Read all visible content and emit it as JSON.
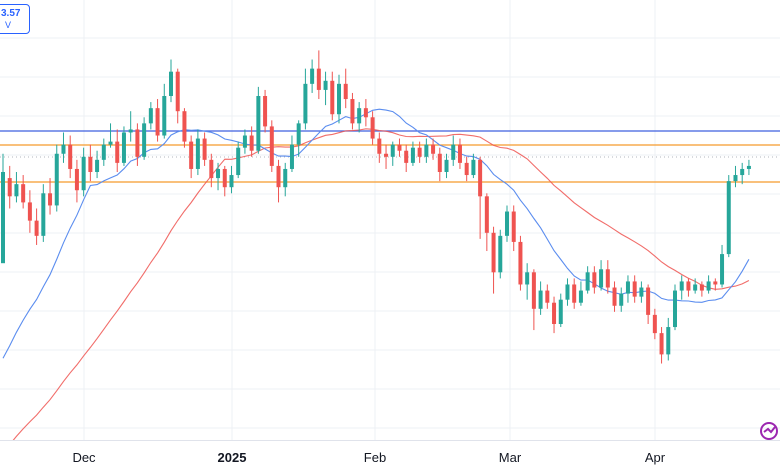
{
  "legend": {
    "value": "3.57",
    "sub": "V"
  },
  "x_axis": {
    "labels": [
      "Dec",
      "2025",
      "Feb",
      "Mar",
      "Apr"
    ]
  },
  "colors": {
    "up": "#26a69a",
    "down": "#ef5350",
    "ma_fast": "#5b8def",
    "ma_slow": "#ef5350",
    "hline_blue": "#3f5fdf",
    "hline_orange": "#f59b2c",
    "grid": "#eef0f4"
  },
  "logo_icon": "tradingview-logo-icon",
  "chart_data": {
    "type": "candlestick",
    "ohlc_note": "values read from pixel-free estimate",
    "candles": [
      [
        0.0,
        3.0,
        3.6,
        2.6
      ],
      [
        2.8,
        2.2,
        3.2,
        1.8
      ],
      [
        2.2,
        2.6,
        3.0,
        2.0
      ],
      [
        2.6,
        2.0,
        2.9,
        1.8
      ],
      [
        2.0,
        1.4,
        2.4,
        1.0
      ],
      [
        1.4,
        0.9,
        1.8,
        0.6
      ],
      [
        0.9,
        2.3,
        2.6,
        0.7
      ],
      [
        2.3,
        1.9,
        2.8,
        1.6
      ],
      [
        1.9,
        3.6,
        3.9,
        1.7
      ],
      [
        3.6,
        3.9,
        4.3,
        3.3
      ],
      [
        3.9,
        3.1,
        4.2,
        2.8
      ],
      [
        3.1,
        2.4,
        3.4,
        2.0
      ],
      [
        2.4,
        3.5,
        3.8,
        2.2
      ],
      [
        3.5,
        3.0,
        3.9,
        2.7
      ],
      [
        3.0,
        3.4,
        3.7,
        2.8
      ],
      [
        3.4,
        3.9,
        4.1,
        3.2
      ],
      [
        3.9,
        4.0,
        4.6,
        3.8
      ],
      [
        4.0,
        3.3,
        4.4,
        3.0
      ],
      [
        3.3,
        4.3,
        4.5,
        3.2
      ],
      [
        4.3,
        4.4,
        5.0,
        4.0
      ],
      [
        4.4,
        3.5,
        4.6,
        3.2
      ],
      [
        3.5,
        4.6,
        4.8,
        3.4
      ],
      [
        4.6,
        5.1,
        5.3,
        4.4
      ],
      [
        5.1,
        4.2,
        5.4,
        4.0
      ],
      [
        4.2,
        5.5,
        5.9,
        4.1
      ],
      [
        5.5,
        6.3,
        6.7,
        5.3
      ],
      [
        6.3,
        5.0,
        6.4,
        4.6
      ],
      [
        5.0,
        4.0,
        5.1,
        3.8
      ],
      [
        4.0,
        3.1,
        4.2,
        2.8
      ],
      [
        3.1,
        4.1,
        4.4,
        2.9
      ],
      [
        4.1,
        3.4,
        4.3,
        3.2
      ],
      [
        3.4,
        2.8,
        3.6,
        2.5
      ],
      [
        2.8,
        3.1,
        3.3,
        2.4
      ],
      [
        3.1,
        2.5,
        3.2,
        2.2
      ],
      [
        2.5,
        2.9,
        3.2,
        2.3
      ],
      [
        2.9,
        3.8,
        4.0,
        2.8
      ],
      [
        3.8,
        4.2,
        4.4,
        3.6
      ],
      [
        4.2,
        3.7,
        4.5,
        3.5
      ],
      [
        3.7,
        5.5,
        5.8,
        3.6
      ],
      [
        5.5,
        4.5,
        5.7,
        4.3
      ],
      [
        4.5,
        3.2,
        4.7,
        3.0
      ],
      [
        3.2,
        2.5,
        3.4,
        2.0
      ],
      [
        2.5,
        3.1,
        3.3,
        2.2
      ],
      [
        3.1,
        3.9,
        4.2,
        3.0
      ],
      [
        3.9,
        4.6,
        4.7,
        3.5
      ],
      [
        4.6,
        5.9,
        6.4,
        4.4
      ],
      [
        5.9,
        6.4,
        6.7,
        5.6
      ],
      [
        6.4,
        5.7,
        7.0,
        5.4
      ],
      [
        5.7,
        6.0,
        6.3,
        5.2
      ],
      [
        6.0,
        4.9,
        6.3,
        4.7
      ],
      [
        4.9,
        5.9,
        6.2,
        4.6
      ],
      [
        5.9,
        5.4,
        6.4,
        5.1
      ],
      [
        5.4,
        4.6,
        5.6,
        4.4
      ],
      [
        4.6,
        5.1,
        5.3,
        4.3
      ],
      [
        5.1,
        4.8,
        5.4,
        4.5
      ],
      [
        4.8,
        4.1,
        5.0,
        3.9
      ],
      [
        4.1,
        3.6,
        4.3,
        3.3
      ],
      [
        3.6,
        3.5,
        3.9,
        3.1
      ],
      [
        3.5,
        3.9,
        4.0,
        3.2
      ],
      [
        3.9,
        3.7,
        4.1,
        3.5
      ],
      [
        3.7,
        3.3,
        3.9,
        3.0
      ],
      [
        3.3,
        3.8,
        4.0,
        3.2
      ],
      [
        3.8,
        3.5,
        4.0,
        3.3
      ],
      [
        3.5,
        3.9,
        4.1,
        3.3
      ],
      [
        3.9,
        3.6,
        4.1,
        3.4
      ],
      [
        3.6,
        3.0,
        3.8,
        2.7
      ],
      [
        3.0,
        3.4,
        3.6,
        2.8
      ],
      [
        3.4,
        3.9,
        4.2,
        3.2
      ],
      [
        3.9,
        3.3,
        4.1,
        3.1
      ],
      [
        3.3,
        2.9,
        3.5,
        2.7
      ],
      [
        2.9,
        3.4,
        3.6,
        2.8
      ],
      [
        3.4,
        2.2,
        3.5,
        0.8
      ],
      [
        2.2,
        1.0,
        2.3,
        0.4
      ],
      [
        1.0,
        -0.3,
        1.2,
        -1.0
      ],
      [
        -0.3,
        0.9,
        1.1,
        -0.5
      ],
      [
        0.9,
        1.7,
        1.9,
        0.7
      ],
      [
        1.7,
        0.7,
        1.9,
        0.4
      ],
      [
        0.7,
        -0.7,
        0.9,
        -0.9
      ],
      [
        -0.7,
        -0.3,
        0.0,
        -1.2
      ],
      [
        -0.3,
        -1.5,
        -0.2,
        -2.2
      ],
      [
        -1.5,
        -0.9,
        -0.6,
        -1.7
      ],
      [
        -0.9,
        -1.3,
        -0.7,
        -1.5
      ],
      [
        -1.3,
        -2.0,
        -1.1,
        -2.3
      ],
      [
        -2.0,
        -1.2,
        -1.0,
        -2.1
      ],
      [
        -1.2,
        -0.7,
        -0.5,
        -1.4
      ],
      [
        -0.7,
        -1.3,
        -0.5,
        -1.5
      ],
      [
        -1.3,
        -0.9,
        -0.6,
        -1.4
      ],
      [
        -0.9,
        -0.3,
        -0.1,
        -1.0
      ],
      [
        -0.3,
        -0.8,
        -0.1,
        -1.0
      ],
      [
        -0.8,
        -0.2,
        0.1,
        -0.9
      ],
      [
        -0.2,
        -0.8,
        0.1,
        -1.0
      ],
      [
        -0.8,
        -1.4,
        -0.6,
        -1.6
      ],
      [
        -1.4,
        -1.0,
        -0.8,
        -1.6
      ],
      [
        -1.0,
        -0.6,
        -0.4,
        -1.3
      ],
      [
        -0.6,
        -1.1,
        -0.4,
        -1.3
      ],
      [
        -1.1,
        -0.8,
        -0.6,
        -1.3
      ],
      [
        -0.8,
        -1.7,
        -0.7,
        -2.0
      ],
      [
        -1.7,
        -2.3,
        -1.5,
        -2.5
      ],
      [
        -2.3,
        -3.0,
        -2.1,
        -3.3
      ],
      [
        -3.0,
        -2.1,
        -1.8,
        -3.2
      ],
      [
        -2.1,
        -0.9,
        -0.7,
        -2.2
      ],
      [
        -0.9,
        -0.6,
        -0.4,
        -1.2
      ],
      [
        -0.6,
        -0.9,
        -0.5,
        -1.1
      ],
      [
        -0.9,
        -0.7,
        -0.5,
        -1.0
      ],
      [
        -0.7,
        -0.9,
        -0.6,
        -1.1
      ],
      [
        -0.9,
        -0.6,
        -0.4,
        -1.0
      ],
      [
        -0.6,
        -0.7,
        -0.5,
        -0.9
      ],
      [
        -0.7,
        0.3,
        0.6,
        -0.8
      ],
      [
        0.3,
        2.7,
        2.9,
        0.2
      ],
      [
        2.7,
        2.9,
        3.2,
        2.5
      ],
      [
        2.9,
        3.1,
        3.3,
        2.6
      ],
      [
        3.1,
        3.2,
        3.4,
        2.9
      ]
    ]
  }
}
